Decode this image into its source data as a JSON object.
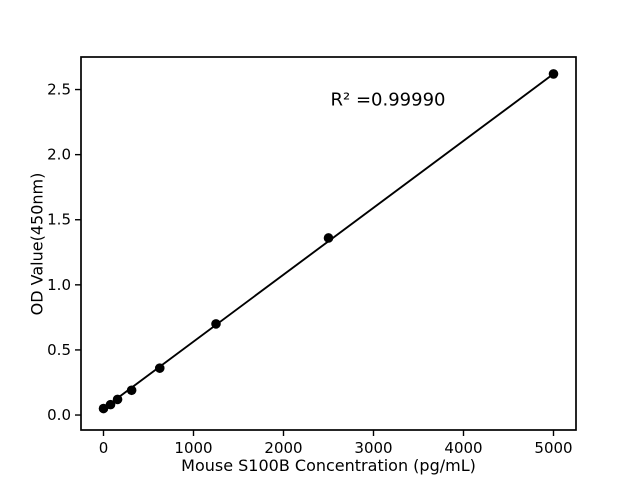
{
  "chart_data": {
    "type": "scatter",
    "title": "",
    "xlabel": "Mouse S100B Concentration (pg/mL)",
    "ylabel": "OD Value(450nm)",
    "annotation": "R² =0.99990",
    "r_squared": 0.9999,
    "x": [
      0,
      78.125,
      156.25,
      312.5,
      625,
      1250,
      2500,
      5000
    ],
    "y": [
      0.05,
      0.08,
      0.12,
      0.19,
      0.36,
      0.7,
      1.36,
      2.62
    ],
    "fit_line": {
      "x": [
        0,
        5000
      ],
      "y": [
        0.05,
        2.62
      ]
    },
    "xticks": [
      0,
      1000,
      2000,
      3000,
      4000,
      5000
    ],
    "yticks": [
      0.0,
      0.5,
      1.0,
      1.5,
      2.0,
      2.5
    ],
    "xlim": [
      -250,
      5250
    ],
    "ylim": [
      -0.115,
      2.75
    ],
    "grid": false,
    "legend": false,
    "marker": {
      "shape": "circle",
      "color": "#000000"
    },
    "line": {
      "color": "#000000"
    },
    "background": "#ffffff",
    "text_color": "#000000"
  }
}
